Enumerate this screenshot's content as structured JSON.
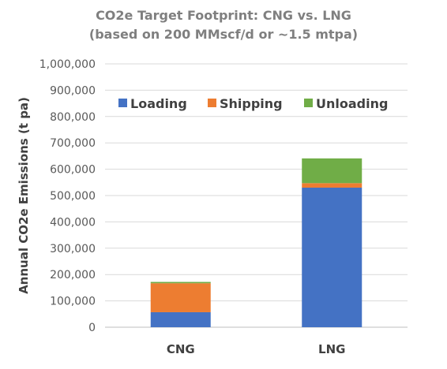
{
  "chart_data": {
    "type": "bar",
    "stacked": true,
    "title": "CO2e Target Footprint:  CNG vs. LNG",
    "subtitle": "(based on 200 MMscf/d or ~1.5 mtpa)",
    "ylabel": "Annual CO2e Emissions (t pa)",
    "xlabel": "",
    "ylim": [
      0,
      1000000
    ],
    "yticks": [
      0,
      100000,
      200000,
      300000,
      400000,
      500000,
      600000,
      700000,
      800000,
      900000,
      1000000
    ],
    "ytick_labels": [
      "0",
      "100,000",
      "200,000",
      "300,000",
      "400,000",
      "500,000",
      "600,000",
      "700,000",
      "800,000",
      "900,000",
      "1,000,000"
    ],
    "categories": [
      "CNG",
      "LNG"
    ],
    "series": [
      {
        "name": "Loading",
        "color": "#4472c4",
        "values": [
          57000,
          530000
        ]
      },
      {
        "name": "Shipping",
        "color": "#ed7d31",
        "values": [
          110000,
          17000
        ]
      },
      {
        "name": "Unloading",
        "color": "#70ad47",
        "values": [
          5000,
          94000
        ]
      }
    ],
    "grid": true,
    "legend_position": "top"
  }
}
